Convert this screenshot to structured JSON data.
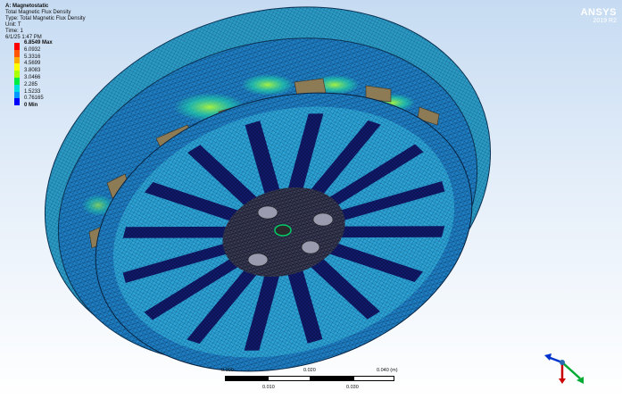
{
  "analysis": {
    "title": "A: Magnetostatic",
    "lines": [
      "Total Magnetic Flux Density",
      "Type: Total Magnetic Flux Density",
      "Unit: T",
      "Time: 1",
      "6/1/25 1:47 PM"
    ]
  },
  "legend": {
    "max": "6.8549 Max",
    "min": "0 Min",
    "values": [
      "6.0932",
      "5.3316",
      "4.5699",
      "3.8083",
      "3.0466",
      "2.285",
      "1.5233",
      "0.76165"
    ],
    "colors": [
      "#ff0000",
      "#ff5500",
      "#ffaa00",
      "#ffff00",
      "#aaff00",
      "#00ee44",
      "#00dddd",
      "#0099ff",
      "#0000ff"
    ]
  },
  "brand": {
    "name": "ANSYS",
    "version": "2019 R2"
  },
  "scale": {
    "top_labels": [
      "0.000",
      "0.020",
      "0.040 (m)"
    ],
    "bottom_labels": [
      "0.010",
      "0.030"
    ]
  }
}
